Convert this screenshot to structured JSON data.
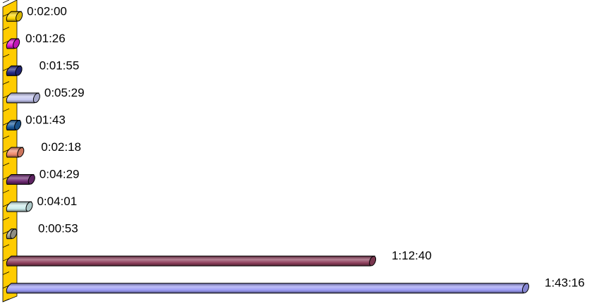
{
  "chart_data": {
    "type": "bar",
    "orientation": "horizontal",
    "style": "3d-cylinder",
    "title": "",
    "xlabel": "",
    "ylabel": "",
    "grid": false,
    "legend": "none",
    "categories": [
      "",
      "",
      "",
      "",
      "",
      "",
      "",
      "",
      "",
      "",
      ""
    ],
    "values_seconds": [
      120,
      86,
      115,
      329,
      103,
      138,
      269,
      241,
      53,
      4360,
      6196
    ],
    "labels": [
      "0:02:00",
      "0:01:26",
      "0:01:55",
      "0:05:29",
      "0:01:43",
      "0:02:18",
      "0:04:29",
      "0:04:01",
      "0:00:53",
      "1:12:40",
      "1:43:16"
    ],
    "colors": [
      "#FFD700",
      "#E21BD5",
      "#262A86",
      "#C5C7F0",
      "#1F5FA0",
      "#F08A6C",
      "#6E2A73",
      "#CDEDEC",
      "#A7A699",
      "#8E3F5C",
      "#9C9CF5"
    ],
    "xlim_seconds": [
      0,
      6196
    ],
    "axis_color": "#FFCC00"
  }
}
